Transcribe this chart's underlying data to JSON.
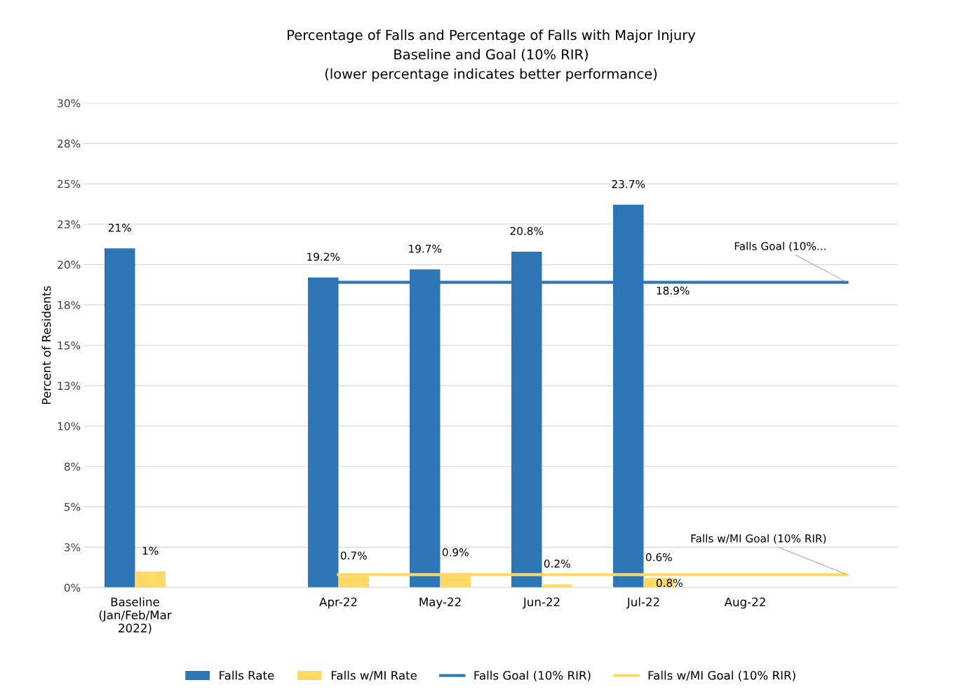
{
  "chart_data": {
    "type": "bar",
    "title": "Percentage of Falls and Percentage of Falls with Major Injury\nBaseline and Goal (10% RIR)\n(lower percentage indicates better performance)",
    "ylabel": "Percent of Residents",
    "categories": [
      "Baseline\n(Jan/Feb/Mar\n2022)",
      null,
      "Apr-22",
      "May-22",
      "Jun-22",
      "Jul-22",
      "Aug-22",
      null
    ],
    "series": [
      {
        "name": "Falls Rate",
        "color": "#2e75b6",
        "values": [
          21,
          null,
          19.2,
          19.7,
          20.8,
          23.7,
          null,
          null
        ],
        "value_labels": [
          "21%",
          null,
          "19.2%",
          "19.7%",
          "20.8%",
          "23.7%",
          null,
          null
        ]
      },
      {
        "name": "Falls w/MI Rate",
        "color": "#ffd966",
        "values": [
          1,
          null,
          0.7,
          0.9,
          0.2,
          0.6,
          null,
          null
        ],
        "value_labels": [
          "1%",
          null,
          "0.7%",
          "0.9%",
          "0.2%",
          "0.6%",
          null,
          null
        ]
      },
      {
        "name": "Falls Goal (10% RIR)",
        "type": "line",
        "color": "#2e75b6",
        "values": [
          null,
          null,
          18.9,
          18.9,
          18.9,
          18.9,
          18.9,
          18.9
        ],
        "value_labels": [
          null,
          null,
          null,
          null,
          null,
          "18.9%",
          null,
          null
        ]
      },
      {
        "name": "Falls w/MI Goal (10% RIR)",
        "type": "line",
        "color": "#ffd966",
        "values": [
          null,
          null,
          0.8,
          0.8,
          0.8,
          0.8,
          0.8,
          0.8
        ],
        "value_labels": [
          null,
          null,
          null,
          null,
          null,
          "0.8%",
          null,
          null
        ]
      }
    ],
    "annotations": [
      {
        "text": "Falls Goal (10%...",
        "y": 18.9
      },
      {
        "text": "Falls w/MI Goal (10% RIR)",
        "y": 0.8
      }
    ],
    "ylim": [
      0,
      30
    ],
    "yticks": [
      {
        "value": 0,
        "label": "0%"
      },
      {
        "value": 2.5,
        "label": "3%"
      },
      {
        "value": 5,
        "label": "5%"
      },
      {
        "value": 7.5,
        "label": "8%"
      },
      {
        "value": 10,
        "label": "10%"
      },
      {
        "value": 12.5,
        "label": "13%"
      },
      {
        "value": 15,
        "label": "15%"
      },
      {
        "value": 17.5,
        "label": "18%"
      },
      {
        "value": 20,
        "label": "20%"
      },
      {
        "value": 22.5,
        "label": "23%"
      },
      {
        "value": 25,
        "label": "25%"
      },
      {
        "value": 27.5,
        "label": "28%"
      },
      {
        "value": 30,
        "label": "30%"
      }
    ],
    "grid": "y",
    "legend": "bottom"
  }
}
